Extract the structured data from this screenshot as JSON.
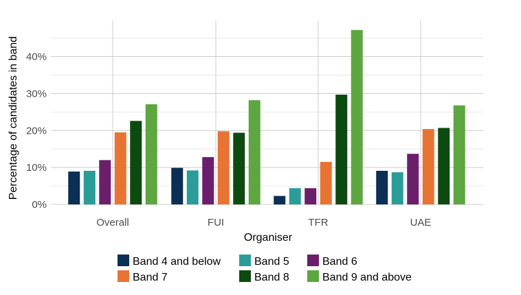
{
  "chart_data": {
    "type": "bar",
    "title": "",
    "xlabel": "Organiser",
    "ylabel": "Percentage of candidates in band",
    "ylim": [
      0,
      0.5
    ],
    "y_ticks": [
      0,
      0.1,
      0.2,
      0.3,
      0.4
    ],
    "y_tick_labels": [
      "0%",
      "10%",
      "20%",
      "30%",
      "40%"
    ],
    "grid": true,
    "legend_position": "bottom",
    "categories": [
      "Overall",
      "FUI",
      "TFR",
      "UAE"
    ],
    "series": [
      {
        "name": "Band 4 and below",
        "color": "#0b2f55",
        "values": [
          0.089,
          0.099,
          0.023,
          0.091
        ]
      },
      {
        "name": "Band 5",
        "color": "#2a9d99",
        "values": [
          0.091,
          0.092,
          0.044,
          0.087
        ]
      },
      {
        "name": "Band 6",
        "color": "#6b1f6b",
        "values": [
          0.12,
          0.128,
          0.044,
          0.137
        ]
      },
      {
        "name": "Band 7",
        "color": "#e87434",
        "values": [
          0.195,
          0.198,
          0.115,
          0.204
        ]
      },
      {
        "name": "Band 8",
        "color": "#0d4a0f",
        "values": [
          0.226,
          0.194,
          0.297,
          0.207
        ]
      },
      {
        "name": "Band 9 and above",
        "color": "#5ea640",
        "values": [
          0.271,
          0.282,
          0.472,
          0.268
        ]
      }
    ]
  }
}
